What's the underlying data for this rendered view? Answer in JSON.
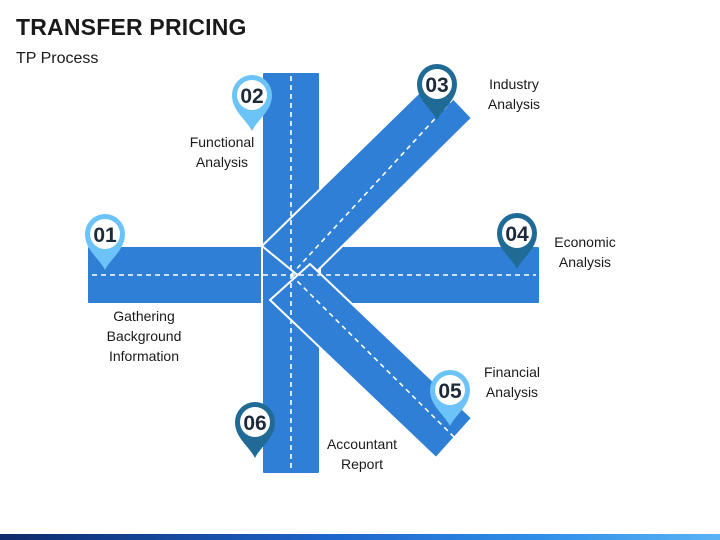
{
  "title": "TRANSFER PRICING",
  "subtitle": "TP Process",
  "steps": [
    {
      "num": "01",
      "label": "Gathering\nBackground\nInformation",
      "pin_color": "#6cc3f7"
    },
    {
      "num": "02",
      "label": "Functional\nAnalysis",
      "pin_color": "#6cc3f7"
    },
    {
      "num": "03",
      "label": "Industry\nAnalysis",
      "pin_color": "#1f6b95"
    },
    {
      "num": "04",
      "label": "Economic\nAnalysis",
      "pin_color": "#1f6b95"
    },
    {
      "num": "05",
      "label": "Financial\nAnalysis",
      "pin_color": "#6cc3f7"
    },
    {
      "num": "06",
      "label": "Accountant\nReport",
      "pin_color": "#1f6b95"
    }
  ],
  "colors": {
    "road_fill": "#2f7fd6",
    "road_edge": "#1f5fae",
    "road_stroke": "#ffffff",
    "lane_marking": "#ffffff",
    "pin_ring": "#ffffff"
  }
}
